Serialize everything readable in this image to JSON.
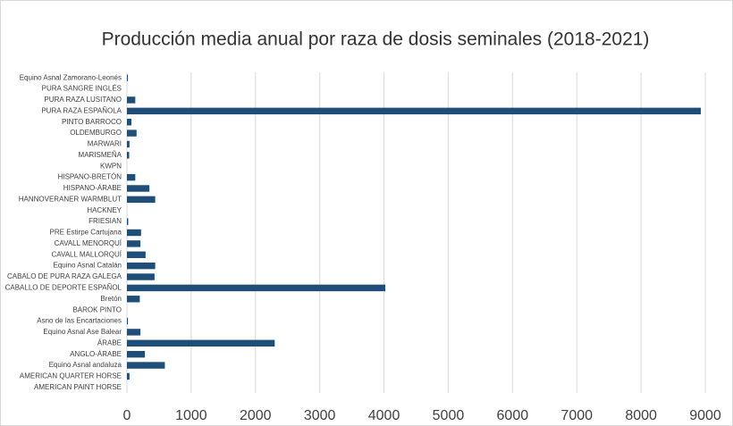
{
  "chart_data": {
    "type": "bar",
    "orientation": "horizontal",
    "title": "Producción media anual por raza de dosis seminales (2018-2021)",
    "categories": [
      "Equino Asnal Zamorano-Leonés",
      "PURA SANGRE INGLÉS",
      "PURA RAZA LUSITANO",
      "PURA RAZA ESPAÑOLA",
      "PINTO BARROCO",
      "OLDEMBURGO",
      "MARWARI",
      "MARISMEÑA",
      "KWPN",
      "HISPANO-BRETÓN",
      "HISPANO-ÁRABE",
      "HANNOVERANER WARMBLUT",
      "HACKNEY",
      "FRIESIAN",
      "PRE Estirpe Cartujana",
      "CAVALL MENORQUÍ",
      "CAVALL MALLORQUÍ",
      "Equino Asnal Catalán",
      "CABALO DE PURA RAZA GALEGA",
      "CABALLO DE DEPORTE ESPAÑOL",
      "Bretón",
      "BAROK PINTO",
      "Asno de las Encartaciones",
      "Equino Asnal Ase Balear",
      "ÁRABE",
      "ANGLO-ÁRABE",
      "Equino Asnal andaluza",
      "AMERICAN QUARTER HORSE",
      "AMERICAN PAINT HORSE"
    ],
    "values": [
      15,
      0,
      130,
      8930,
      70,
      150,
      40,
      35,
      0,
      130,
      350,
      440,
      0,
      20,
      220,
      210,
      290,
      440,
      430,
      4020,
      200,
      0,
      15,
      210,
      2300,
      280,
      590,
      40,
      0
    ],
    "color": "#1f4e79",
    "xlim": [
      0,
      9000
    ],
    "xticks": [
      0,
      1000,
      2000,
      3000,
      4000,
      5000,
      6000,
      7000,
      8000,
      9000
    ],
    "grid": true
  }
}
